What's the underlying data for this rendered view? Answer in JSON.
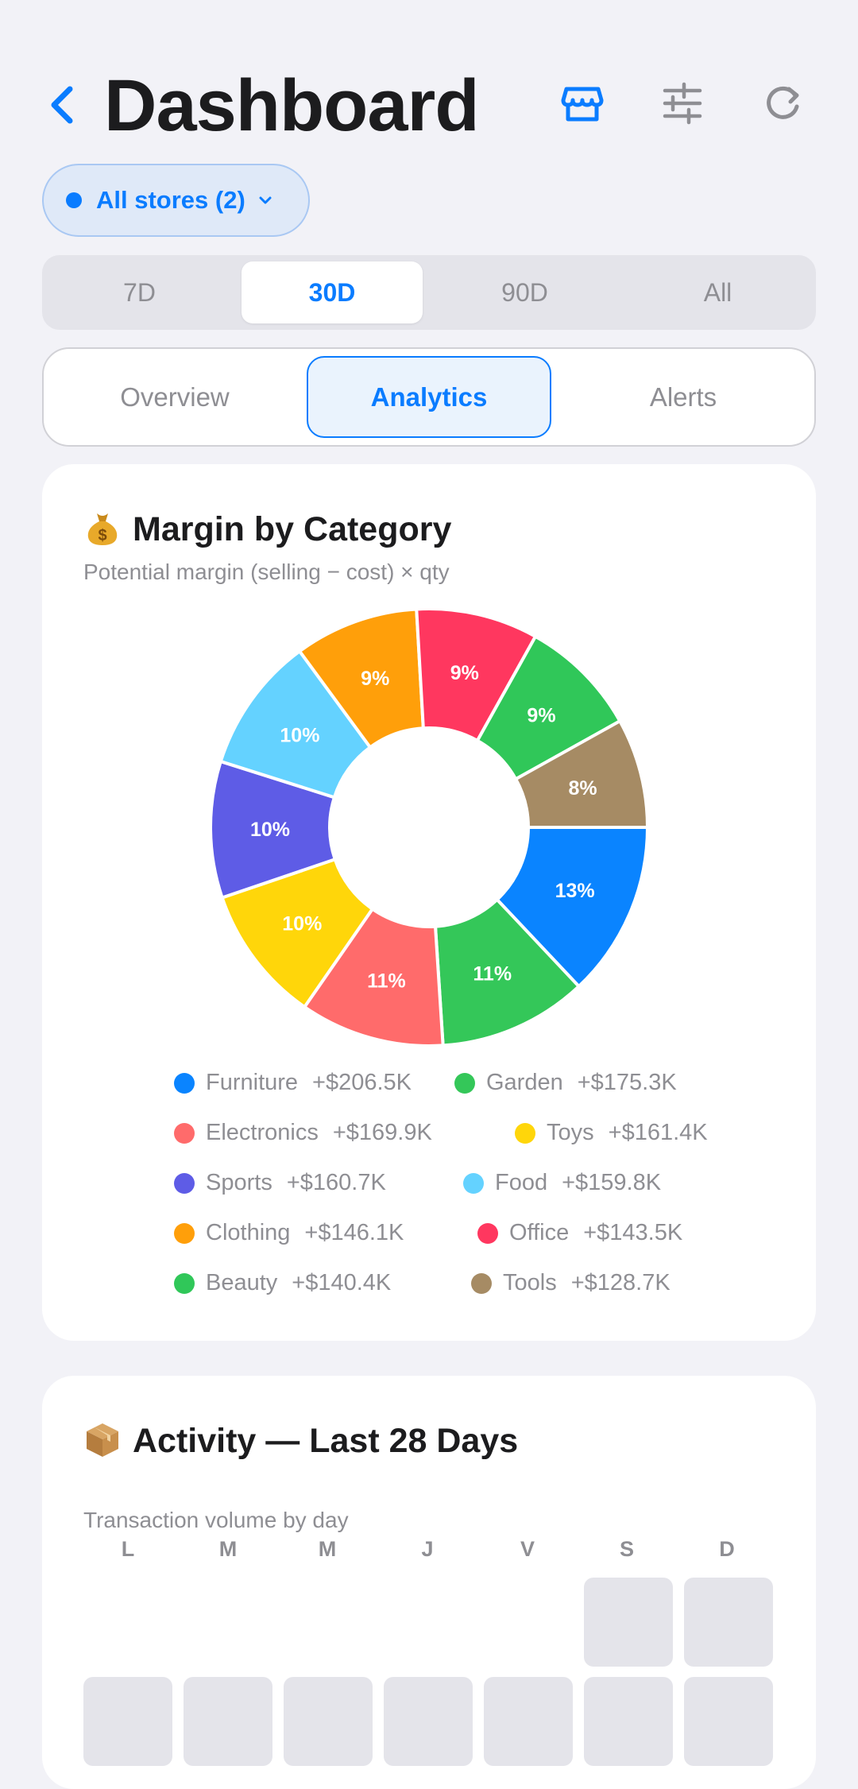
{
  "header": {
    "title": "Dashboard",
    "icons": [
      "chevron-left-icon",
      "store-icon",
      "sliders-icon",
      "refresh-icon"
    ]
  },
  "store_filter": {
    "label": "All stores (2)"
  },
  "range_tabs": [
    {
      "label": "7D",
      "selected": false
    },
    {
      "label": "30D",
      "selected": true
    },
    {
      "label": "90D",
      "selected": false
    },
    {
      "label": "All",
      "selected": false
    }
  ],
  "view_tabs": [
    {
      "label": "Overview",
      "selected": false
    },
    {
      "label": "Analytics",
      "selected": true
    },
    {
      "label": "Alerts",
      "selected": false
    }
  ],
  "margin_card": {
    "emoji": "money-bag-icon",
    "title": "Margin by Category",
    "subtitle": "Potential margin (selling − cost) × qty"
  },
  "chart_data": {
    "type": "pie",
    "title": "Margin by Category",
    "categories": [
      "Furniture",
      "Garden",
      "Electronics",
      "Toys",
      "Sports",
      "Food",
      "Clothing",
      "Office",
      "Beauty",
      "Tools"
    ],
    "values": [
      206.5,
      175.3,
      169.9,
      161.4,
      160.7,
      159.8,
      146.1,
      143.5,
      140.4,
      128.7
    ],
    "value_labels": [
      "+$206.5K",
      "+$175.3K",
      "+$169.9K",
      "+$161.4K",
      "+$160.7K",
      "+$159.8K",
      "+$146.1K",
      "+$143.5K",
      "+$140.4K",
      "+$128.7K"
    ],
    "percent_labels": [
      "13%",
      "11%",
      "11%",
      "10%",
      "10%",
      "10%",
      "9%",
      "9%",
      "9%",
      "8%"
    ],
    "colors": [
      "#0a84ff",
      "#34c759",
      "#ff6b6b",
      "#ffd60a",
      "#5e5ce6",
      "#64d2ff",
      "#ff9f0a",
      "#ff375f",
      "#30c759",
      "#a68b64"
    ],
    "legend_placement": "bottom"
  },
  "activity_card": {
    "emoji": "package-icon",
    "title": "Activity — Last 28 Days",
    "subtitle": "Transaction volume by day",
    "weekdays": [
      "L",
      "M",
      "M",
      "J",
      "V",
      "S",
      "D"
    ]
  }
}
